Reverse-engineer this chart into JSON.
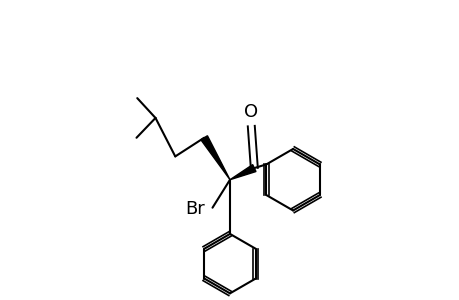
{
  "background_color": "#ffffff",
  "line_color": "#000000",
  "line_width": 1.5,
  "font_size": 13,
  "fig_width": 4.6,
  "fig_height": 3.0,
  "dpi": 100
}
